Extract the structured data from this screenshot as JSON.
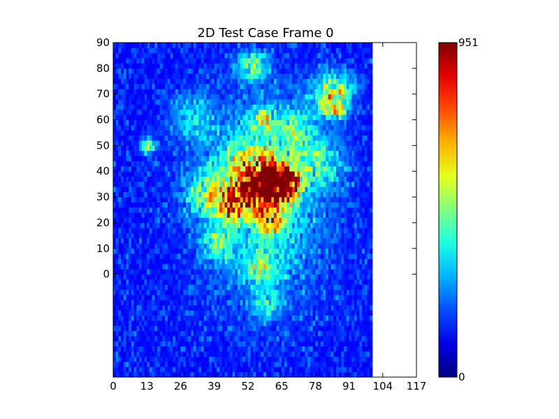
{
  "chart_data": {
    "type": "heatmap",
    "title": "2D Test Case Frame 0",
    "xlabel": "",
    "ylabel": "",
    "x_ticks": [
      "0",
      "13",
      "26",
      "39",
      "52",
      "65",
      "78",
      "91",
      "104",
      "117"
    ],
    "y_ticks": [
      "0",
      "10",
      "20",
      "30",
      "40",
      "50",
      "60",
      "70",
      "80",
      "90"
    ],
    "xlim": [
      0,
      117
    ],
    "ylim": [
      -40,
      90
    ],
    "data_x_range": [
      0,
      100
    ],
    "colormap": "jet",
    "colorbar": {
      "min": 0,
      "max": 951,
      "min_label": "0",
      "max_label": "951"
    },
    "grid": false,
    "hotspots": [
      {
        "x": 60,
        "y": 33,
        "peak": 951,
        "spread": 6
      },
      {
        "x": 52,
        "y": 38,
        "peak": 520,
        "spread": 9
      },
      {
        "x": 45,
        "y": 26,
        "peak": 560,
        "spread": 5
      },
      {
        "x": 66,
        "y": 35,
        "peak": 700,
        "spread": 4
      },
      {
        "x": 84,
        "y": 70,
        "peak": 560,
        "spread": 5
      },
      {
        "x": 85,
        "y": 64,
        "peak": 520,
        "spread": 3
      },
      {
        "x": 53,
        "y": 80,
        "peak": 380,
        "spread": 4
      },
      {
        "x": 13,
        "y": 49,
        "peak": 480,
        "spread": 2
      },
      {
        "x": 57,
        "y": 59,
        "peak": 420,
        "spread": 3
      },
      {
        "x": 60,
        "y": 19,
        "peak": 420,
        "spread": 4
      },
      {
        "x": 40,
        "y": 11,
        "peak": 360,
        "spread": 4
      },
      {
        "x": 57,
        "y": 2,
        "peak": 320,
        "spread": 5
      },
      {
        "x": 59,
        "y": -12,
        "peak": 260,
        "spread": 4
      },
      {
        "x": 70,
        "y": 55,
        "peak": 300,
        "spread": 6
      },
      {
        "x": 30,
        "y": 60,
        "peak": 250,
        "spread": 6
      },
      {
        "x": 34,
        "y": 30,
        "peak": 340,
        "spread": 5
      },
      {
        "x": 80,
        "y": 42,
        "peak": 260,
        "spread": 6
      }
    ],
    "noise_level": 180,
    "seed": 7
  }
}
